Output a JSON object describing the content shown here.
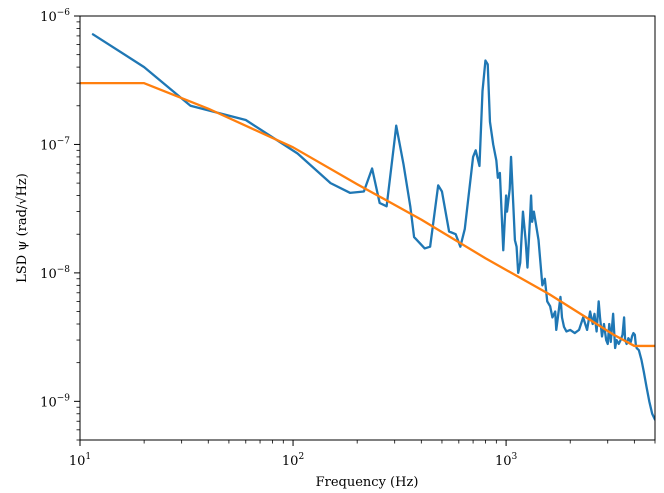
{
  "chart_data": {
    "type": "line",
    "title": "",
    "xlabel": "Frequency (Hz)",
    "ylabel": "LSD ψ (rad/√Hz)",
    "xscale": "log",
    "yscale": "log",
    "xlim": [
      10,
      5000
    ],
    "ylim": [
      5e-10,
      1e-06
    ],
    "grid": false,
    "legend": "none",
    "xticks": [
      {
        "value": 10,
        "base": "10",
        "exp": "1"
      },
      {
        "value": 100,
        "base": "10",
        "exp": "2"
      },
      {
        "value": 1000,
        "base": "10",
        "exp": "3"
      }
    ],
    "yticks": [
      {
        "value": 1e-09,
        "base": "10",
        "exp": "−9"
      },
      {
        "value": 1e-08,
        "base": "10",
        "exp": "−8"
      },
      {
        "value": 1e-07,
        "base": "10",
        "exp": "−7"
      },
      {
        "value": 1e-06,
        "base": "10",
        "exp": "−6"
      }
    ],
    "series": [
      {
        "color": "#1f77b4",
        "points": [
          [
            11.5,
            7.2e-07
          ],
          [
            20,
            4e-07
          ],
          [
            33,
            2e-07
          ],
          [
            60,
            1.55e-07
          ],
          [
            105,
            8.5e-08
          ],
          [
            150,
            5e-08
          ],
          [
            185,
            4.2e-08
          ],
          [
            215,
            4.3e-08
          ],
          [
            235,
            6.5e-08
          ],
          [
            255,
            3.5e-08
          ],
          [
            275,
            3.3e-08
          ],
          [
            300,
            1.1e-07
          ],
          [
            305,
            1.4e-07
          ],
          [
            330,
            7e-08
          ],
          [
            355,
            3.3e-08
          ],
          [
            370,
            1.9e-08
          ],
          [
            415,
            1.55e-08
          ],
          [
            440,
            1.6e-08
          ],
          [
            480,
            4.8e-08
          ],
          [
            500,
            4.3e-08
          ],
          [
            540,
            2.1e-08
          ],
          [
            580,
            2e-08
          ],
          [
            610,
            1.6e-08
          ],
          [
            640,
            2.2e-08
          ],
          [
            700,
            8e-08
          ],
          [
            720,
            9e-08
          ],
          [
            750,
            6.8e-08
          ],
          [
            775,
            2.6e-07
          ],
          [
            800,
            4.5e-07
          ],
          [
            820,
            4.2e-07
          ],
          [
            840,
            1.5e-07
          ],
          [
            870,
            1e-07
          ],
          [
            900,
            7.5e-08
          ],
          [
            915,
            5.5e-08
          ],
          [
            935,
            6e-08
          ],
          [
            970,
            1.5e-08
          ],
          [
            985,
            2.5e-08
          ],
          [
            1000,
            4e-08
          ],
          [
            1010,
            3e-08
          ],
          [
            1040,
            4.5e-08
          ],
          [
            1055,
            8e-08
          ],
          [
            1080,
            3.5e-08
          ],
          [
            1100,
            1.8e-08
          ],
          [
            1120,
            1.6e-08
          ],
          [
            1140,
            1e-08
          ],
          [
            1165,
            1.2e-08
          ],
          [
            1200,
            3e-08
          ],
          [
            1235,
            1.8e-08
          ],
          [
            1260,
            1.1e-08
          ],
          [
            1300,
            3e-08
          ],
          [
            1310,
            4e-08
          ],
          [
            1325,
            2.5e-08
          ],
          [
            1350,
            3e-08
          ],
          [
            1375,
            2.5e-08
          ],
          [
            1420,
            1.8e-08
          ],
          [
            1480,
            8e-09
          ],
          [
            1520,
            9e-09
          ],
          [
            1560,
            6e-09
          ],
          [
            1610,
            5.5e-09
          ],
          [
            1650,
            4.5e-09
          ],
          [
            1700,
            5e-09
          ],
          [
            1720,
            3.6e-09
          ],
          [
            1750,
            4.5e-09
          ],
          [
            1800,
            6.5e-09
          ],
          [
            1830,
            4.5e-09
          ],
          [
            1870,
            3.8e-09
          ],
          [
            1920,
            3.5e-09
          ],
          [
            2000,
            3.6e-09
          ],
          [
            2100,
            3.4e-09
          ],
          [
            2200,
            3.6e-09
          ],
          [
            2300,
            4.5e-09
          ],
          [
            2400,
            3.6e-09
          ],
          [
            2480,
            5e-09
          ],
          [
            2550,
            4e-09
          ],
          [
            2600,
            4.8e-09
          ],
          [
            2660,
            3.5e-09
          ],
          [
            2720,
            6e-09
          ],
          [
            2760,
            4.5e-09
          ],
          [
            2820,
            3.2e-09
          ],
          [
            2880,
            4e-09
          ],
          [
            2950,
            3e-09
          ],
          [
            3000,
            2.8e-09
          ],
          [
            3050,
            4e-09
          ],
          [
            3100,
            2.9e-09
          ],
          [
            3180,
            4.8e-09
          ],
          [
            3250,
            2.6e-09
          ],
          [
            3300,
            3e-09
          ],
          [
            3380,
            2.8e-09
          ],
          [
            3450,
            3e-09
          ],
          [
            3520,
            3.3e-09
          ],
          [
            3580,
            4.5e-09
          ],
          [
            3620,
            3e-09
          ],
          [
            3680,
            2.8e-09
          ],
          [
            3750,
            3.1e-09
          ],
          [
            3850,
            2.9e-09
          ],
          [
            3900,
            3.2e-09
          ],
          [
            3960,
            3.4e-09
          ],
          [
            4020,
            3.3e-09
          ],
          [
            4060,
            2.8e-09
          ],
          [
            4100,
            2.6e-09
          ],
          [
            4200,
            2.5e-09
          ],
          [
            4320,
            2.1e-09
          ],
          [
            4430,
            1.7e-09
          ],
          [
            4560,
            1.3e-09
          ],
          [
            4700,
            1e-09
          ],
          [
            4850,
            8e-10
          ],
          [
            5000,
            7.2e-10
          ]
        ]
      },
      {
        "color": "#ff7f0e",
        "points": [
          [
            10,
            3e-07
          ],
          [
            20,
            3e-07
          ],
          [
            40,
            1.9e-07
          ],
          [
            100,
            9.5e-08
          ],
          [
            200,
            4.9e-08
          ],
          [
            400,
            2.6e-08
          ],
          [
            800,
            1.3e-08
          ],
          [
            1600,
            6.8e-09
          ],
          [
            3200,
            3.3e-09
          ],
          [
            4000,
            2.7e-09
          ],
          [
            5000,
            2.7e-09
          ]
        ]
      }
    ]
  }
}
